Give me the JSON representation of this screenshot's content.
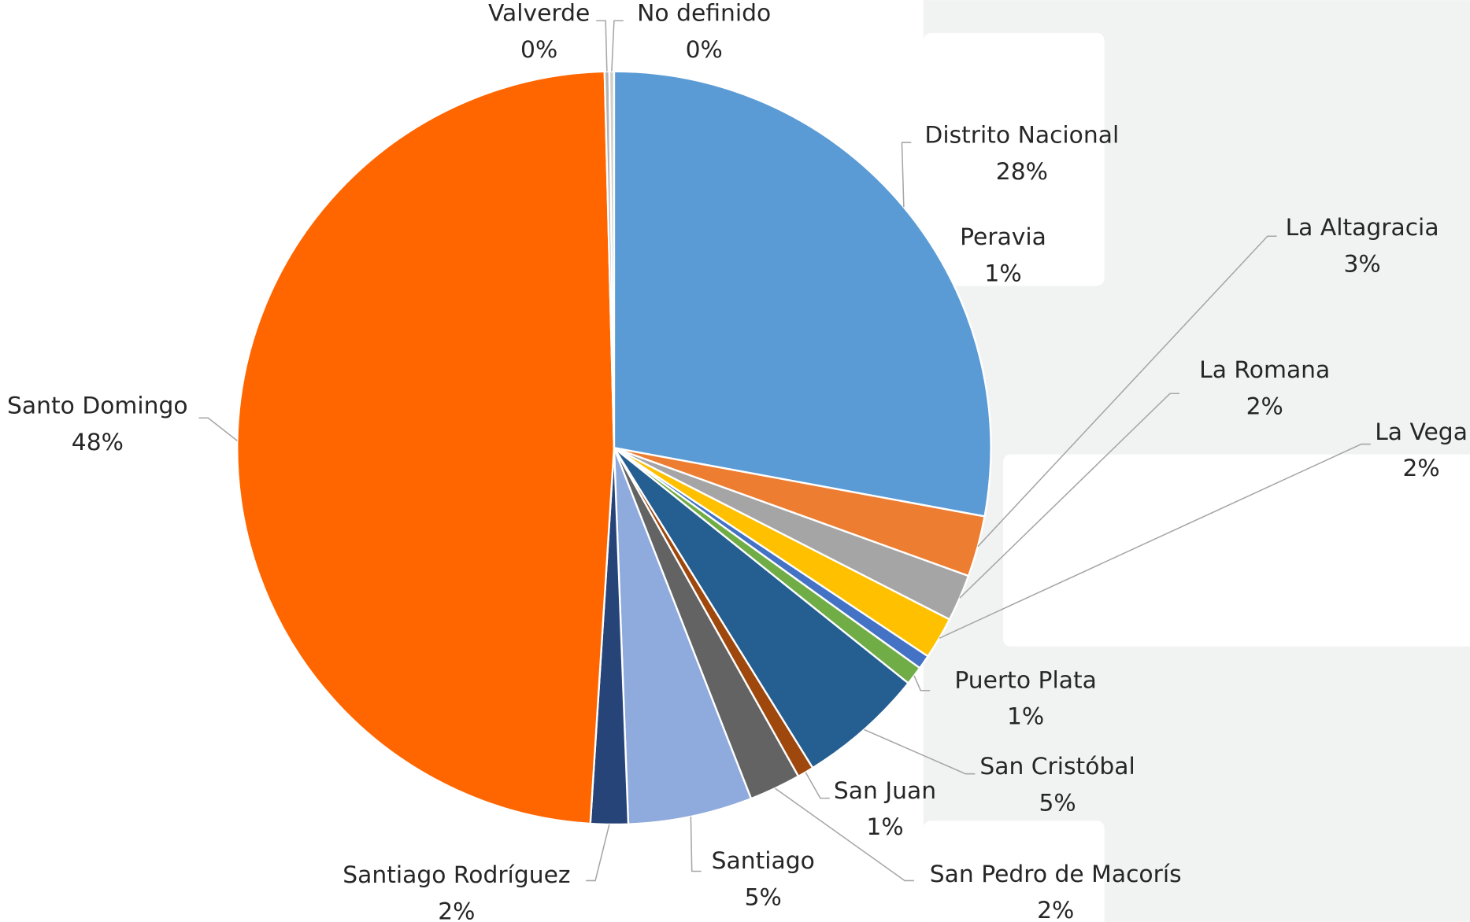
{
  "chart_data": {
    "type": "pie",
    "categories": [
      "Distrito Nacional",
      "La Altagracia",
      "La Romana",
      "La Vega",
      "Peravia",
      "Puerto Plata",
      "San Cristóbal",
      "San Juan",
      "San Pedro de Macorís",
      "Santiago",
      "Santiago Rodríguez",
      "Santo Domingo",
      "Valverde",
      "No definido"
    ],
    "values": [
      27.8,
      2.6,
      2.0,
      1.8,
      0.6,
      0.8,
      5.4,
      0.7,
      2.2,
      5.3,
      1.6,
      48.4,
      0.2,
      0.2
    ],
    "value_labels": [
      "28%",
      "3%",
      "2%",
      "2%",
      "1%",
      "1%",
      "5%",
      "1%",
      "2%",
      "5%",
      "2%",
      "48%",
      "0%",
      "0%"
    ],
    "colors": [
      "#5b9bd5",
      "#ed7d31",
      "#a5a5a5",
      "#ffc000",
      "#4472c4",
      "#70ad47",
      "#255e91",
      "#9e480e",
      "#636363",
      "#8faadc",
      "#264478",
      "#ff6600",
      "#b4b4b4",
      "#cfcfcf"
    ]
  }
}
